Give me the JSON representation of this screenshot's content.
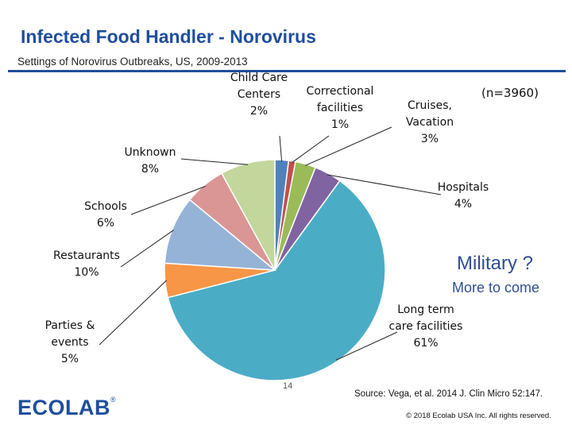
{
  "slide": {
    "title": "Infected Food Handler - Norovirus",
    "subtitle": "Settings of Norovirus Outbreaks, US, 2009-2013",
    "n_label": "(n=3960)",
    "military": "Military ?",
    "more_to_come": "More to come",
    "source": "Source:  Vega, et al. 2014 J. Clin Micro 52:147.",
    "copyright": "© 2018 Ecolab USA Inc. All rights reserved.",
    "page_number": "14",
    "logo_text": "ECOLAB",
    "logo_mark": "®"
  },
  "chart_data": {
    "type": "pie",
    "title": "Settings of Norovirus Outbreaks, US, 2009-2013",
    "slices": [
      {
        "name": "Child Care Centers",
        "value": 2,
        "label_lines": [
          "Child Care",
          "Centers",
          "2%"
        ],
        "color": "#4f81bd"
      },
      {
        "name": "Correctional facilities",
        "value": 1,
        "label_lines": [
          "Correctional",
          "facilities",
          "1%"
        ],
        "color": "#c0504d"
      },
      {
        "name": "Cruises, Vacation",
        "value": 3,
        "label_lines": [
          "Cruises,",
          "Vacation",
          "3%"
        ],
        "color": "#9bbb59"
      },
      {
        "name": "Hospitals",
        "value": 4,
        "label_lines": [
          "Hospitals",
          "4%"
        ],
        "color": "#8064a2"
      },
      {
        "name": "Long term care facilities",
        "value": 61,
        "label_lines": [
          "Long term",
          "care facilities",
          "61%"
        ],
        "color": "#4bacc6"
      },
      {
        "name": "Parties & events",
        "value": 5,
        "label_lines": [
          "Parties &",
          "events",
          "5%"
        ],
        "color": "#f79646"
      },
      {
        "name": "Restaurants",
        "value": 10,
        "label_lines": [
          "Restaurants",
          "10%"
        ],
        "color": "#95b3d7"
      },
      {
        "name": "Schools",
        "value": 6,
        "label_lines": [
          "Schools",
          "6%"
        ],
        "color": "#d99694"
      },
      {
        "name": "Unknown",
        "value": 8,
        "label_lines": [
          "Unknown",
          "8%"
        ],
        "color": "#c3d69b"
      }
    ]
  }
}
